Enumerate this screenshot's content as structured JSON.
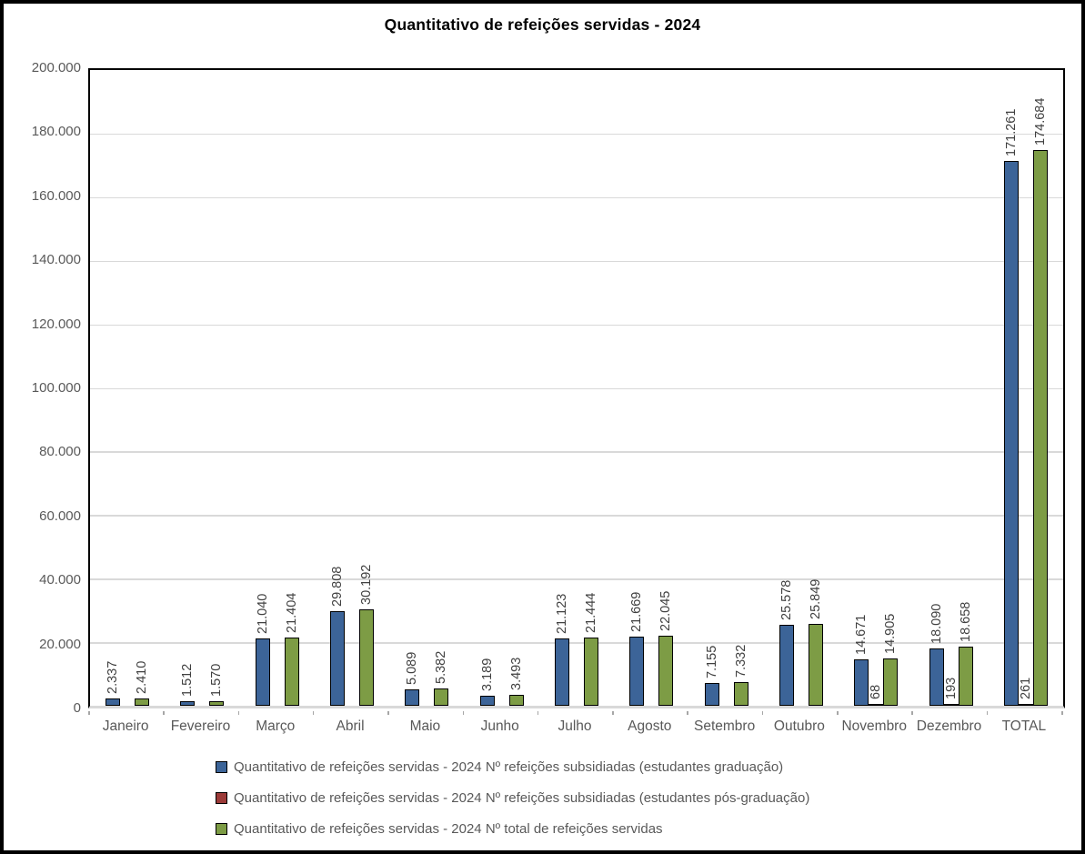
{
  "title": "Quantitativo de refeições servidas - 2024",
  "chart_data": {
    "type": "bar",
    "title": "Quantitativo de refeições servidas - 2024",
    "categories": [
      "Janeiro",
      "Fevereiro",
      "Março",
      "Abril",
      "Maio",
      "Junho",
      "Julho",
      "Agosto",
      "Setembro",
      "Outubro",
      "Novembro",
      "Dezembro",
      "TOTAL"
    ],
    "series": [
      {
        "name": "Quantitativo de refeições servidas - 2024 Nº refeições subsidiadas (estudantes graduação)",
        "color": "#3C6498",
        "values": [
          2337,
          1512,
          21040,
          29808,
          5089,
          3189,
          21123,
          21669,
          7155,
          25578,
          14671,
          18090,
          171261
        ],
        "labels": [
          "2.337",
          "1.512",
          "21.040",
          "29.808",
          "5.089",
          "3.189",
          "21.123",
          "21.669",
          "7.155",
          "25.578",
          "14.671",
          "18.090",
          "171.261"
        ]
      },
      {
        "name": "Quantitativo de refeições servidas - 2024 Nº refeições subsidiadas (estudantes pós-graduação)",
        "color": "#9B3A38",
        "values": [
          null,
          null,
          null,
          null,
          null,
          null,
          null,
          null,
          null,
          null,
          68,
          193,
          261
        ],
        "labels": [
          "",
          "",
          "",
          "",
          "",
          "",
          "",
          "",
          "",
          "",
          "68",
          "193",
          "261"
        ]
      },
      {
        "name": "Quantitativo de refeições servidas - 2024 Nº total de refeições servidas",
        "color": "#7D9C45",
        "values": [
          2410,
          1570,
          21404,
          30192,
          5382,
          3493,
          21444,
          22045,
          7332,
          25849,
          14905,
          18658,
          174684
        ],
        "labels": [
          "2.410",
          "1.570",
          "21.404",
          "30.192",
          "5.382",
          "3.493",
          "21.444",
          "22.045",
          "7.332",
          "25.849",
          "14.905",
          "18.658",
          "174.684"
        ]
      }
    ],
    "ylim": [
      0,
      200000
    ],
    "ytick_step": 20000,
    "ytick_labels": [
      "0",
      "20.000",
      "40.000",
      "60.000",
      "80.000",
      "100.000",
      "120.000",
      "140.000",
      "160.000",
      "180.000",
      "200.000"
    ],
    "grid": true,
    "legend_position": "bottom",
    "bar_label_rotation": 90,
    "colors": {
      "gridline": "#D9D9D9",
      "axis_text": "#595959",
      "data_label": "#404040",
      "bar_border": "#000000",
      "baseline": "#D9D9D9"
    }
  }
}
